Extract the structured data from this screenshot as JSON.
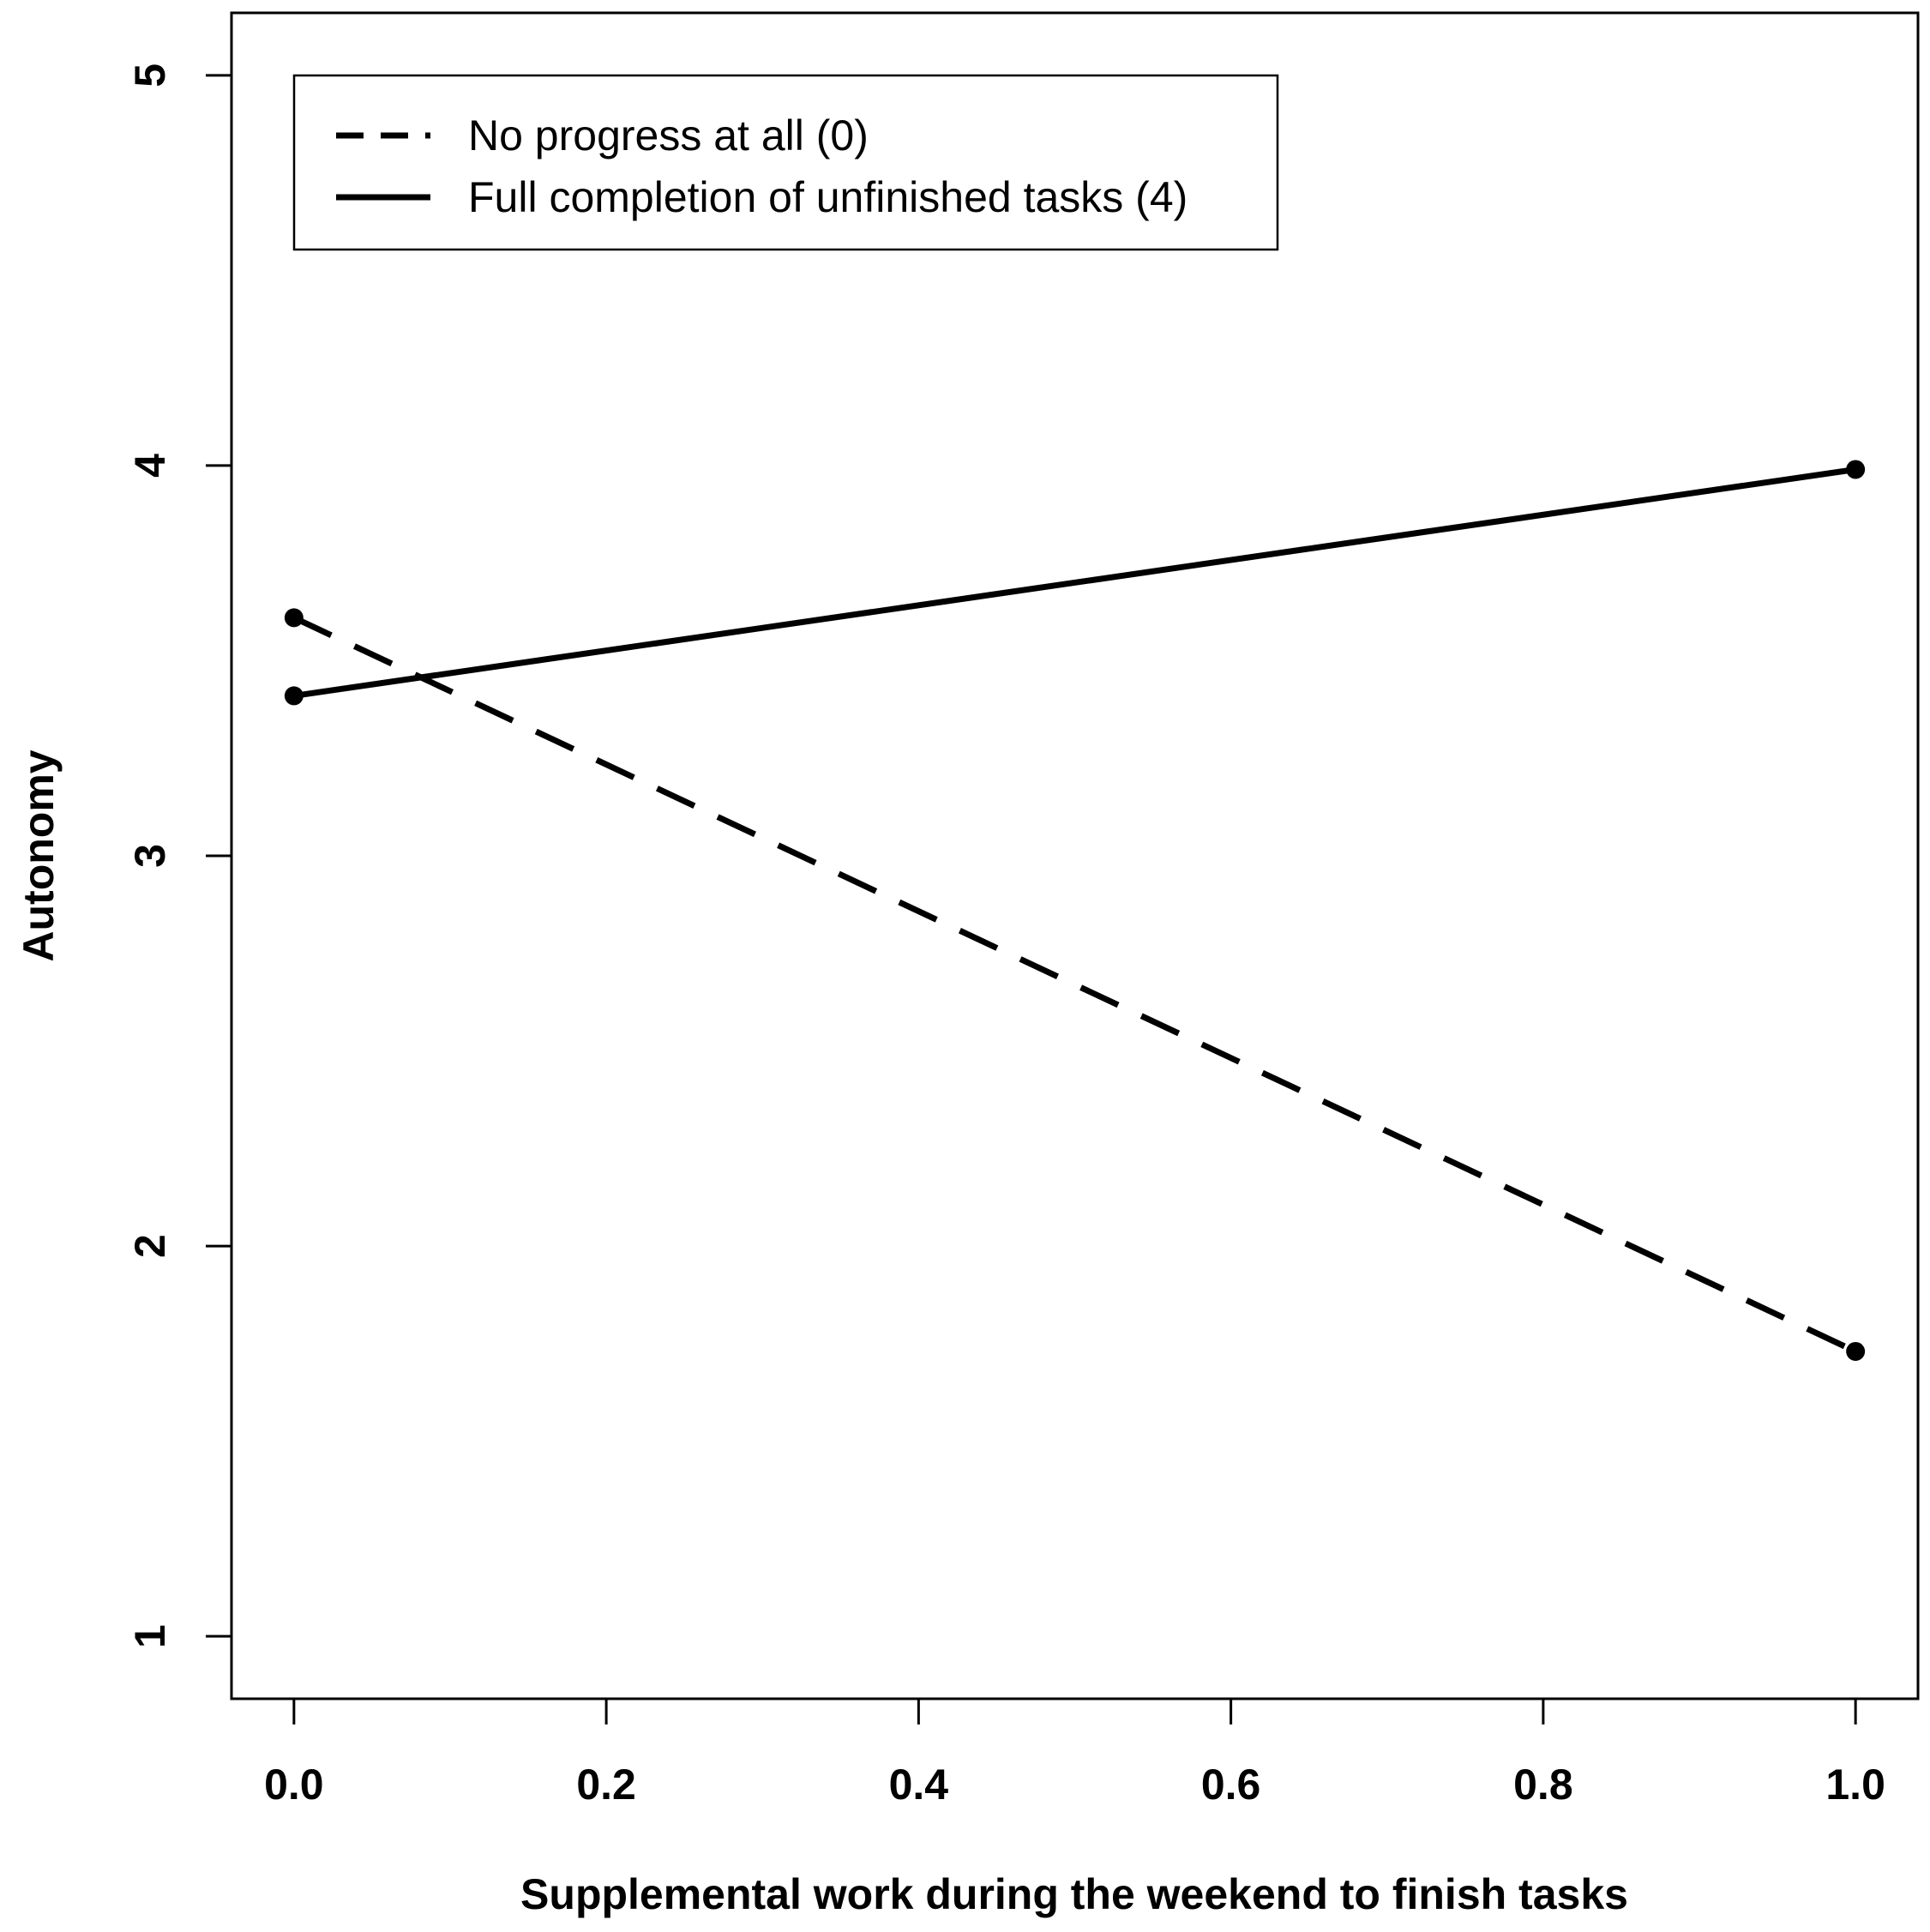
{
  "chart_data": {
    "type": "line",
    "title": "",
    "xlabel": "Supplemental work during the weekend to finish tasks",
    "ylabel": "Autonomy",
    "xlim": [
      -0.04,
      1.04
    ],
    "ylim": [
      0.84,
      5.16
    ],
    "x_ticks": [
      "0.0",
      "0.2",
      "0.4",
      "0.6",
      "0.8",
      "1.0"
    ],
    "y_ticks": [
      "1",
      "2",
      "3",
      "4",
      "5"
    ],
    "grid": false,
    "legend_position": "top-left",
    "series": [
      {
        "name": "No progress at all (0)",
        "line_style": "dashed",
        "color": "#000000",
        "x": [
          0,
          1
        ],
        "y": [
          3.61,
          1.73
        ]
      },
      {
        "name": "Full completion of unfinished tasks (4)",
        "line_style": "solid",
        "color": "#000000",
        "x": [
          0,
          1
        ],
        "y": [
          3.41,
          3.99
        ]
      }
    ]
  }
}
